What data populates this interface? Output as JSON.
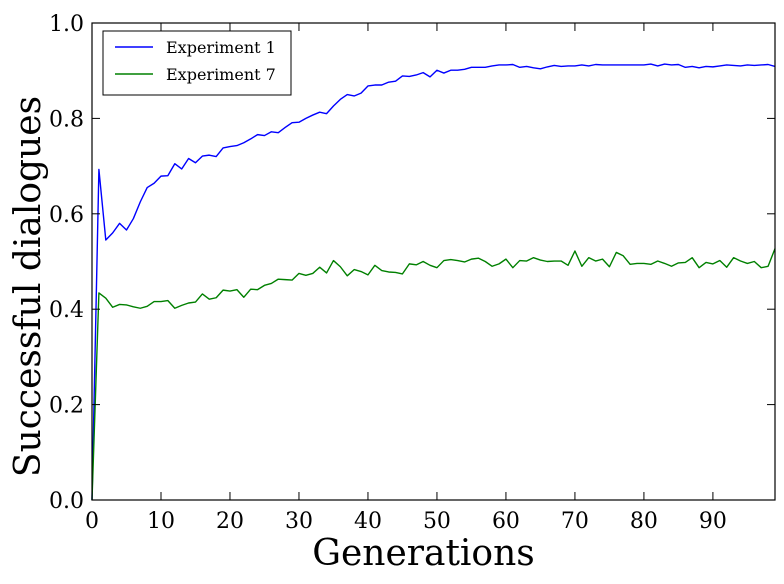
{
  "chart_data": {
    "type": "line",
    "xlabel": "Generations",
    "ylabel": "Successful dialogues",
    "xlim": [
      0,
      99
    ],
    "ylim": [
      0.0,
      1.0
    ],
    "x_ticks": [
      0,
      10,
      20,
      30,
      40,
      50,
      60,
      70,
      80,
      90
    ],
    "x_tick_labels": [
      "0",
      "10",
      "20",
      "30",
      "40",
      "50",
      "60",
      "70",
      "80",
      "90"
    ],
    "y_ticks": [
      0.0,
      0.2,
      0.4,
      0.6,
      0.8,
      1.0
    ],
    "y_tick_labels": [
      "0.0",
      "0.2",
      "0.4",
      "0.6",
      "0.8",
      "1.0"
    ],
    "grid": false,
    "legend_position": "top-left",
    "x": [
      0,
      1,
      2,
      3,
      4,
      5,
      6,
      7,
      8,
      9,
      10,
      11,
      12,
      13,
      14,
      15,
      16,
      17,
      18,
      19,
      20,
      21,
      22,
      23,
      24,
      25,
      26,
      27,
      28,
      29,
      30,
      31,
      32,
      33,
      34,
      35,
      36,
      37,
      38,
      39,
      40,
      41,
      42,
      43,
      44,
      45,
      46,
      47,
      48,
      49,
      50,
      51,
      52,
      53,
      54,
      55,
      56,
      57,
      58,
      59,
      60,
      61,
      62,
      63,
      64,
      65,
      66,
      67,
      68,
      69,
      70,
      71,
      72,
      73,
      74,
      75,
      76,
      77,
      78,
      79,
      80,
      81,
      82,
      83,
      84,
      85,
      86,
      87,
      88,
      89,
      90,
      91,
      92,
      93,
      94,
      95,
      96,
      97,
      98,
      99
    ],
    "series": [
      {
        "name": "Experiment 1",
        "color": "#0000ff",
        "values": [
          0.0,
          0.693,
          0.545,
          0.56,
          0.58,
          0.566,
          0.59,
          0.625,
          0.655,
          0.664,
          0.679,
          0.68,
          0.705,
          0.694,
          0.716,
          0.707,
          0.721,
          0.723,
          0.72,
          0.738,
          0.741,
          0.743,
          0.749,
          0.757,
          0.766,
          0.764,
          0.772,
          0.77,
          0.781,
          0.791,
          0.792,
          0.8,
          0.807,
          0.813,
          0.81,
          0.826,
          0.84,
          0.85,
          0.847,
          0.853,
          0.868,
          0.87,
          0.87,
          0.876,
          0.878,
          0.889,
          0.888,
          0.891,
          0.896,
          0.887,
          0.901,
          0.895,
          0.901,
          0.901,
          0.903,
          0.907,
          0.907,
          0.907,
          0.91,
          0.912,
          0.912,
          0.913,
          0.907,
          0.909,
          0.906,
          0.904,
          0.908,
          0.911,
          0.909,
          0.91,
          0.91,
          0.912,
          0.91,
          0.913,
          0.912,
          0.912,
          0.912,
          0.912,
          0.912,
          0.912,
          0.912,
          0.914,
          0.91,
          0.914,
          0.912,
          0.913,
          0.907,
          0.909,
          0.906,
          0.909,
          0.908,
          0.91,
          0.912,
          0.911,
          0.91,
          0.912,
          0.911,
          0.912,
          0.913,
          0.909
        ]
      },
      {
        "name": "Experiment 7",
        "color": "#008000",
        "values": [
          0.0,
          0.434,
          0.423,
          0.404,
          0.41,
          0.409,
          0.405,
          0.402,
          0.406,
          0.416,
          0.416,
          0.418,
          0.402,
          0.408,
          0.413,
          0.415,
          0.432,
          0.421,
          0.424,
          0.44,
          0.438,
          0.441,
          0.425,
          0.442,
          0.441,
          0.45,
          0.454,
          0.463,
          0.462,
          0.461,
          0.475,
          0.471,
          0.475,
          0.488,
          0.476,
          0.502,
          0.489,
          0.47,
          0.483,
          0.479,
          0.472,
          0.492,
          0.481,
          0.478,
          0.477,
          0.474,
          0.495,
          0.493,
          0.5,
          0.492,
          0.487,
          0.502,
          0.504,
          0.502,
          0.499,
          0.505,
          0.507,
          0.5,
          0.49,
          0.495,
          0.505,
          0.487,
          0.502,
          0.501,
          0.508,
          0.503,
          0.5,
          0.501,
          0.501,
          0.492,
          0.522,
          0.49,
          0.508,
          0.501,
          0.505,
          0.489,
          0.519,
          0.512,
          0.494,
          0.496,
          0.496,
          0.494,
          0.501,
          0.496,
          0.49,
          0.497,
          0.498,
          0.508,
          0.487,
          0.498,
          0.495,
          0.502,
          0.488,
          0.508,
          0.501,
          0.496,
          0.5,
          0.487,
          0.49,
          0.527
        ]
      }
    ]
  }
}
